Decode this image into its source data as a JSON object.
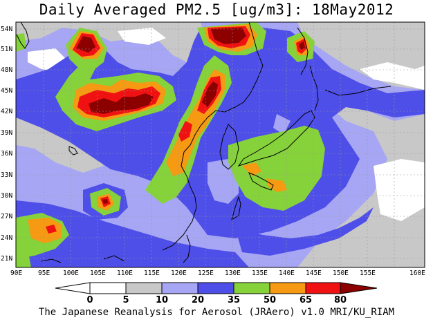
{
  "title": "Daily Averaged PM2.5 [ug/m3]: 18May2012",
  "credit": "The Japanese Reanalysis for Aerosol (JRAero) v1.0 MRI/KU_RIAM",
  "map": {
    "lon_labels": [
      "90E",
      "95E",
      "100E",
      "105E",
      "110E",
      "115E",
      "120E",
      "125E",
      "130E",
      "135E",
      "140E",
      "145E",
      "150E",
      "155E",
      "160E"
    ],
    "lat_labels": [
      "54N",
      "51N",
      "48N",
      "45N",
      "42N",
      "39N",
      "36N",
      "33N",
      "30N",
      "27N",
      "24N",
      "21N"
    ]
  },
  "colorbar": {
    "levels": [
      "0",
      "5",
      "10",
      "20",
      "35",
      "50",
      "65",
      "80"
    ],
    "colors": [
      "#ffffff",
      "#c8c8c8",
      "#a6a6f4",
      "#4e4ee8",
      "#86d23a",
      "#f59a12",
      "#f01212",
      "#8c0000"
    ]
  },
  "colors": {
    "c1": "#c8c8c8",
    "c2": "#a6a6f4",
    "c3": "#4e4ee8",
    "c4": "#86d23a",
    "c5": "#f59a12",
    "c6": "#f01212",
    "c7": "#8c0000"
  }
}
